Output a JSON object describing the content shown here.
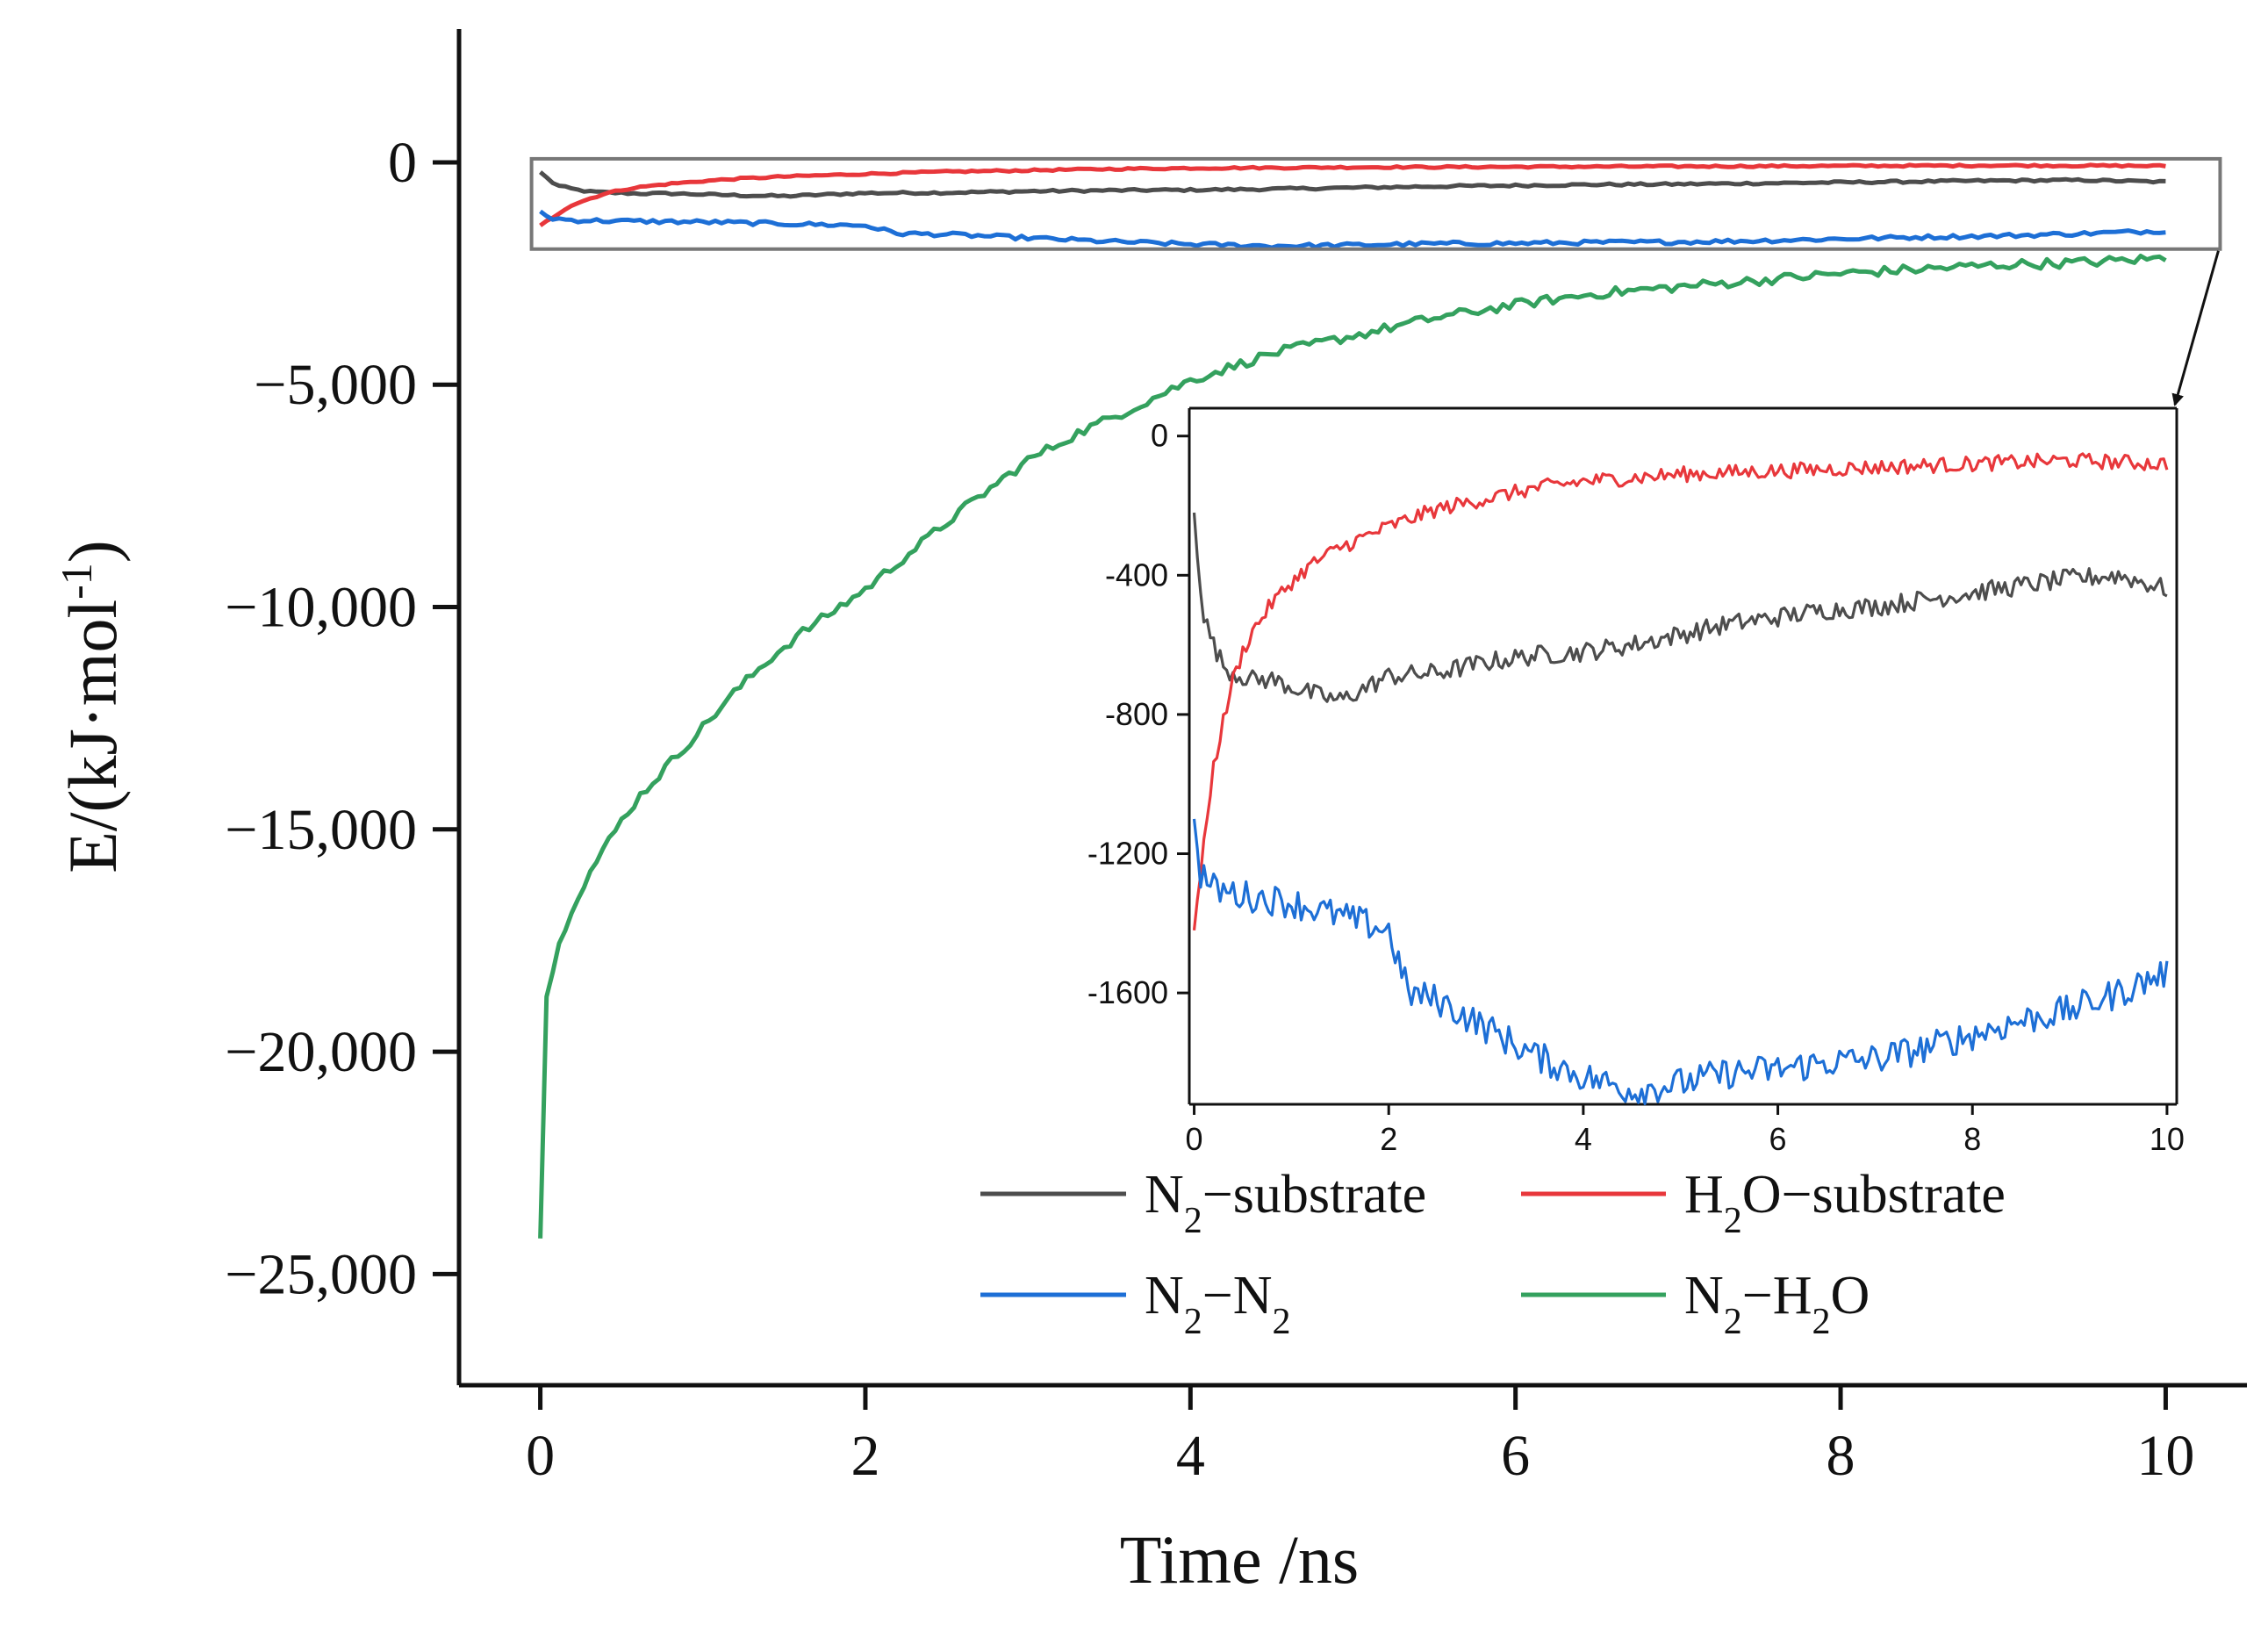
{
  "chart_data": [
    {
      "name": "main",
      "type": "line",
      "xlabel": "Time /ns",
      "ylabel": "E/(kJ·mol⁻¹)",
      "ylabel_parts": {
        "pre": "E/(kJ·mol",
        "sup": "-1",
        "post": ")"
      },
      "xlim": [
        -0.5,
        10.5
      ],
      "ylim": [
        -27500,
        3000
      ],
      "xticks": [
        0,
        2,
        4,
        6,
        8,
        10
      ],
      "xtick_labels": [
        "0",
        "2",
        "4",
        "6",
        "8",
        "10"
      ],
      "yticks": [
        0,
        -5000,
        -10000,
        -15000,
        -20000,
        -25000
      ],
      "ytick_labels": [
        "0",
        "−5,000",
        "−10,000",
        "−15,000",
        "−20,000",
        "−25,000"
      ],
      "series": [
        {
          "name": "N2−substrate",
          "color": "#4d4d4d",
          "x": [
            0,
            0.05,
            0.1,
            0.2,
            0.3,
            0.4,
            0.5,
            0.6,
            0.8,
            1.0,
            1.2,
            1.5,
            2.0,
            2.5,
            3.0,
            3.5,
            4.0,
            4.5,
            5.0,
            5.5,
            6.0,
            6.5,
            7.0,
            7.5,
            8.0,
            8.5,
            9.0,
            9.5,
            10.0
          ],
          "y": [
            -220,
            -380,
            -520,
            -600,
            -660,
            -680,
            -690,
            -700,
            -700,
            -720,
            -740,
            -760,
            -690,
            -680,
            -650,
            -630,
            -620,
            -600,
            -570,
            -540,
            -520,
            -500,
            -490,
            -470,
            -450,
            -430,
            -410,
            -400,
            -440
          ]
        },
        {
          "name": "H2O−substrate",
          "color": "#e8373b",
          "x": [
            0,
            0.05,
            0.1,
            0.15,
            0.2,
            0.3,
            0.4,
            0.5,
            0.6,
            0.8,
            1.0,
            1.2,
            1.5,
            2.0,
            2.5,
            3.0,
            3.5,
            4.0,
            5.0,
            6.0,
            7.0,
            8.0,
            9.0,
            10.0
          ],
          "y": [
            -1420,
            -1300,
            -1180,
            -1050,
            -950,
            -820,
            -700,
            -620,
            -560,
            -480,
            -420,
            -370,
            -320,
            -260,
            -210,
            -180,
            -150,
            -130,
            -110,
            -100,
            -90,
            -80,
            -70,
            -80
          ]
        },
        {
          "name": "N2−N2",
          "color": "#1d6fd6",
          "x": [
            0,
            0.05,
            0.2,
            0.5,
            1.0,
            1.5,
            2.0,
            2.2,
            2.5,
            3.0,
            3.5,
            4.0,
            4.5,
            5.0,
            5.5,
            6.0,
            6.5,
            7.0,
            7.5,
            8.0,
            8.5,
            9.0,
            9.5,
            10.0
          ],
          "y": [
            -1100,
            -1250,
            -1300,
            -1320,
            -1340,
            -1380,
            -1420,
            -1600,
            -1620,
            -1700,
            -1780,
            -1840,
            -1880,
            -1860,
            -1830,
            -1820,
            -1800,
            -1790,
            -1760,
            -1720,
            -1680,
            -1650,
            -1600,
            -1540
          ]
        },
        {
          "name": "N2−H2O",
          "color": "#34a15e",
          "x": [
            0,
            0.03,
            0.06,
            0.1,
            0.15,
            0.2,
            0.3,
            0.4,
            0.5,
            0.6,
            0.8,
            1.0,
            1.2,
            1.4,
            1.6,
            1.8,
            2.0,
            2.3,
            2.6,
            3.0,
            3.3,
            3.6,
            4.0,
            4.5,
            5.0,
            5.5,
            6.0,
            6.5,
            7.0,
            7.5,
            8.0,
            8.5,
            9.0,
            9.5,
            10.0
          ],
          "y": [
            -24200,
            -18900,
            -18400,
            -17800,
            -17200,
            -16700,
            -16000,
            -15400,
            -14800,
            -14300,
            -13500,
            -12700,
            -11900,
            -11200,
            -10600,
            -10100,
            -9600,
            -8700,
            -7800,
            -6700,
            -6100,
            -5600,
            -4900,
            -4300,
            -3900,
            -3500,
            -3200,
            -2950,
            -2800,
            -2650,
            -2500,
            -2400,
            -2300,
            -2250,
            -2150
          ]
        }
      ]
    },
    {
      "name": "inset",
      "type": "line",
      "xlim": [
        -0.05,
        10.1
      ],
      "ylim": [
        -1920,
        80
      ],
      "xticks": [
        0,
        2,
        4,
        6,
        8,
        10
      ],
      "xtick_labels": [
        "0",
        "2",
        "4",
        "6",
        "8",
        "10"
      ],
      "yticks": [
        0,
        -400,
        -800,
        -1200,
        -1600
      ],
      "ytick_labels": [
        "0",
        "-400",
        "-800",
        "-1200",
        "-1600"
      ],
      "series_ref": [
        "N2−substrate",
        "H2O−substrate",
        "N2−N2"
      ],
      "zoom_region": {
        "x": [
          0,
          10.2
        ],
        "y": [
          -1950,
          80
        ]
      }
    }
  ],
  "legend": {
    "placement": "bottom-right",
    "items": [
      {
        "label": {
          "a": "N",
          "sub": "2",
          "b": "−substrate",
          "sub2": "",
          "c": ""
        },
        "color": "#4d4d4d"
      },
      {
        "label": {
          "a": "H",
          "sub": "2",
          "b": "O−substrate",
          "sub2": "",
          "c": ""
        },
        "color": "#e8373b"
      },
      {
        "label": {
          "a": "N",
          "sub": "2",
          "b": "−N",
          "sub2": "2",
          "c": ""
        },
        "color": "#1d6fd6"
      },
      {
        "label": {
          "a": "N",
          "sub": "2",
          "b": "−H",
          "sub2": "2",
          "c": "O"
        },
        "color": "#34a15e"
      }
    ]
  }
}
